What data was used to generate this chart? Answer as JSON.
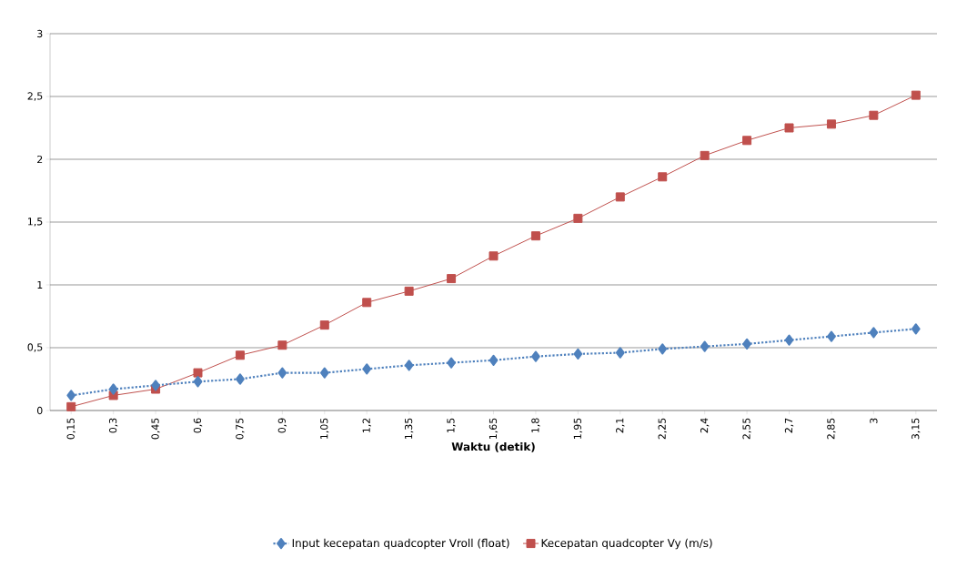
{
  "chart_data": {
    "type": "line",
    "xlabel": "Waktu (detik)",
    "categories": [
      "0,15",
      "0,3",
      "0,45",
      "0,6",
      "0,75",
      "0,9",
      "1,05",
      "1,2",
      "1,35",
      "1,5",
      "1,65",
      "1,8",
      "1,95",
      "2,1",
      "2,25",
      "2,4",
      "2,55",
      "2,7",
      "2,85",
      "3",
      "3,15"
    ],
    "series": [
      {
        "name": "Input kecepatan quadcopter Vroll (float)",
        "color": "#4f81bd",
        "marker": "diamond",
        "line_style": "dotted",
        "values": [
          0.12,
          0.17,
          0.2,
          0.23,
          0.25,
          0.3,
          0.3,
          0.33,
          0.36,
          0.38,
          0.4,
          0.43,
          0.45,
          0.46,
          0.49,
          0.51,
          0.53,
          0.56,
          0.59,
          0.62,
          0.65
        ]
      },
      {
        "name": "Kecepatan quadcopter Vy (m/s)",
        "color": "#c0504d",
        "marker": "square",
        "line_style": "solid",
        "values": [
          0.03,
          0.12,
          0.17,
          0.3,
          0.44,
          0.52,
          0.68,
          0.86,
          0.95,
          1.05,
          1.23,
          1.39,
          1.53,
          1.7,
          1.86,
          2.03,
          2.15,
          2.25,
          2.28,
          2.35,
          2.51
        ]
      }
    ],
    "ylim": [
      0,
      3
    ],
    "yticks": [
      0,
      {
        "value": 0.5,
        "label": "0,5"
      },
      1,
      {
        "value": 1.5,
        "label": "1,5"
      },
      2,
      {
        "value": 2.5,
        "label": "2,5"
      },
      3
    ],
    "grid": "y",
    "legend": "bottom"
  }
}
